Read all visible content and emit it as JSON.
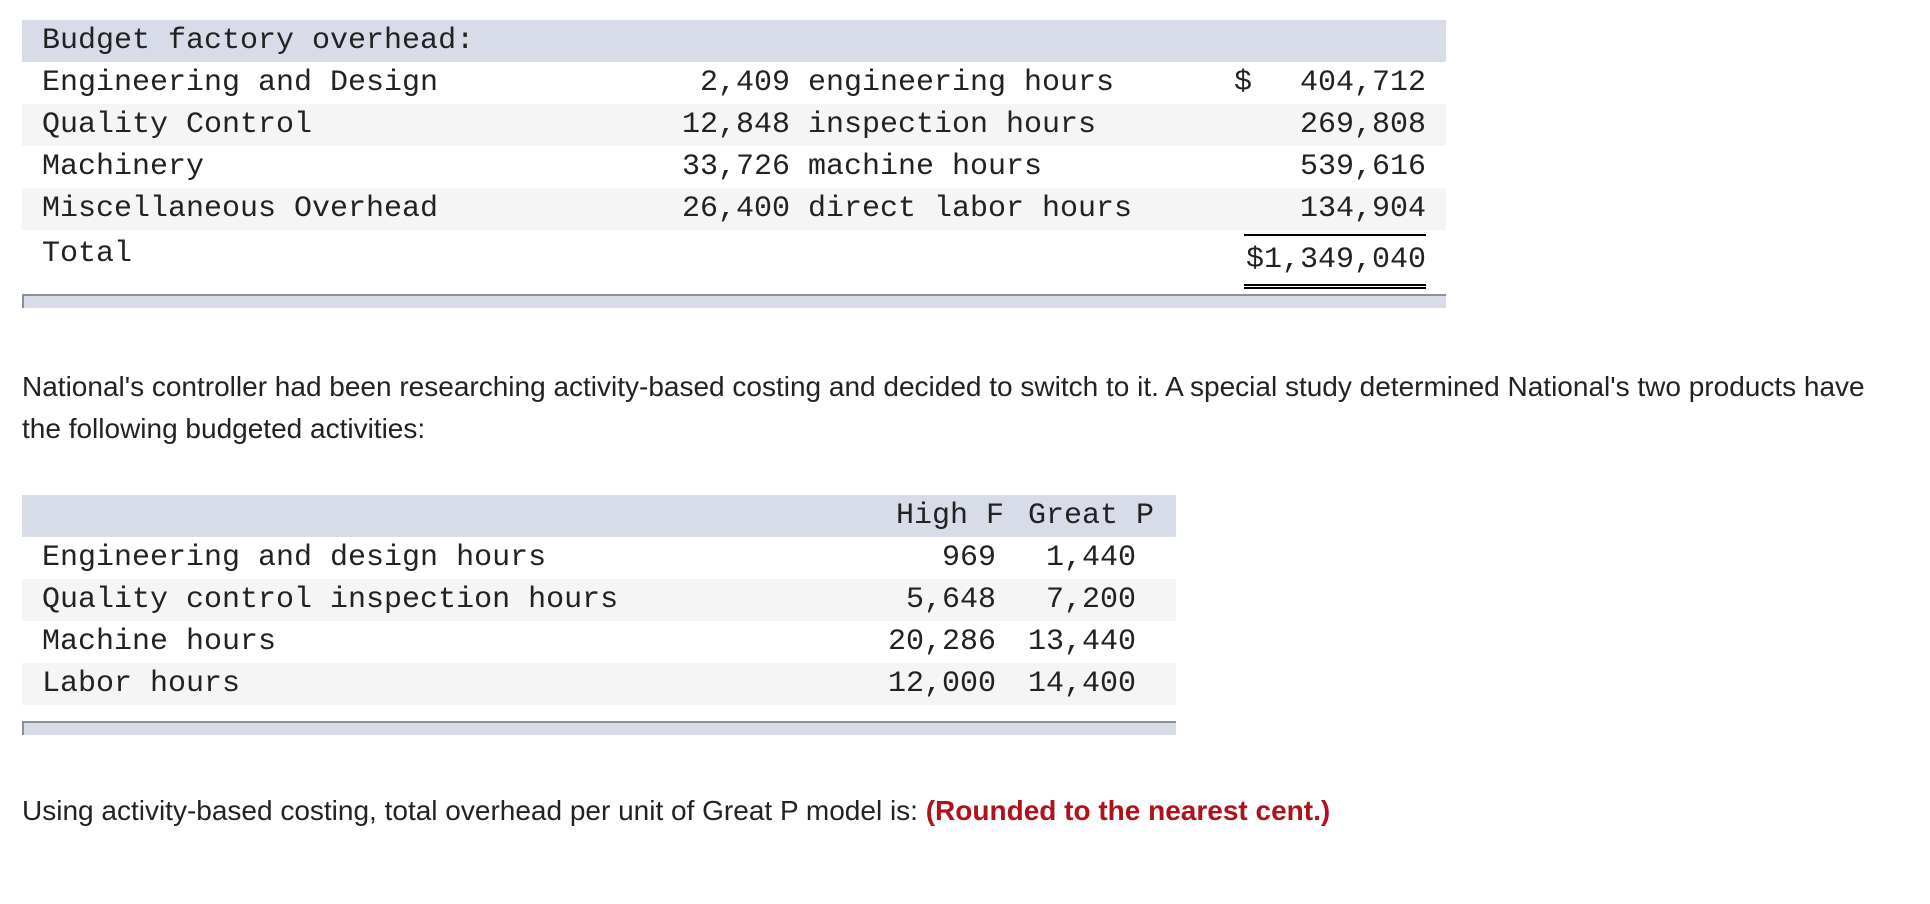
{
  "budget_table": {
    "header": "Budget factory overhead:",
    "rows": [
      {
        "label": "Engineering and Design",
        "qty": "2,409",
        "unit": "engineering hours",
        "dollar": "$",
        "amount": "404,712"
      },
      {
        "label": "Quality Control",
        "qty": "12,848",
        "unit": "inspection hours",
        "dollar": "",
        "amount": "269,808"
      },
      {
        "label": "Machinery",
        "qty": "33,726",
        "unit": "machine hours",
        "dollar": "",
        "amount": "539,616"
      },
      {
        "label": "Miscellaneous Overhead",
        "qty": "26,400",
        "unit": "direct labor hours",
        "dollar": "",
        "amount": "134,904"
      }
    ],
    "total_label": "Total",
    "total_amount": "$1,349,040"
  },
  "paragraph1": "National's controller had been researching activity-based costing and decided to switch to it. A special study determined National's two products have the following budgeted activities:",
  "activities_table": {
    "columns": [
      "High F",
      "Great P"
    ],
    "rows": [
      {
        "label": "Engineering and design hours",
        "high_f": "969",
        "great_p": "1,440"
      },
      {
        "label": "Quality control inspection hours",
        "high_f": "5,648",
        "great_p": "7,200"
      },
      {
        "label": "Machine hours",
        "high_f": "20,286",
        "great_p": "13,440"
      },
      {
        "label": "Labor hours",
        "high_f": "12,000",
        "great_p": "14,400"
      }
    ]
  },
  "question": {
    "text": "Using activity-based costing, total overhead per unit of Great P model is: ",
    "emphasis": "(Rounded to the nearest cent.)"
  },
  "colors": {
    "header_bg": "#d8dce8",
    "alt_row_bg": "#f5f5f5",
    "emphasis_red": "#b0121b"
  }
}
